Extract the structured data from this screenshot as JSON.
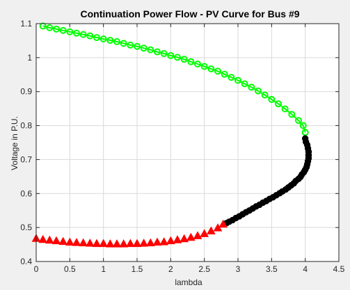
{
  "chart_data": {
    "type": "scatter",
    "title": "Continuation Power Flow - PV Curve for Bus #9",
    "xlabel": "lambda",
    "ylabel": "Voltage in P.U.",
    "xlim": [
      0,
      4.5
    ],
    "ylim": [
      0.4,
      1.1
    ],
    "xticks": [
      0,
      0.5,
      1,
      1.5,
      2,
      2.5,
      3,
      3.5,
      4,
      4.5
    ],
    "xtick_labels": [
      "0",
      "0.5",
      "1",
      "1.5",
      "2",
      "2.5",
      "3",
      "3.5",
      "4",
      "4.5"
    ],
    "yticks": [
      0.4,
      0.5,
      0.6,
      0.7,
      0.8,
      0.9,
      1.0,
      1.1
    ],
    "ytick_labels": [
      "0.4",
      "0.5",
      "0.6",
      "0.7",
      "0.8",
      "0.9",
      "1",
      "1.1"
    ],
    "grid": true,
    "legend": "none",
    "series": [
      {
        "marker": "circle",
        "color": "#00ff00",
        "line": true,
        "points": [
          [
            0.1,
            1.093
          ],
          [
            0.2,
            1.088
          ],
          [
            0.3,
            1.084
          ],
          [
            0.4,
            1.08
          ],
          [
            0.5,
            1.076
          ],
          [
            0.6,
            1.072
          ],
          [
            0.7,
            1.068
          ],
          [
            0.8,
            1.064
          ],
          [
            0.9,
            1.059
          ],
          [
            1.0,
            1.055
          ],
          [
            1.1,
            1.051
          ],
          [
            1.2,
            1.047
          ],
          [
            1.3,
            1.042
          ],
          [
            1.4,
            1.037
          ],
          [
            1.5,
            1.033
          ],
          [
            1.6,
            1.028
          ],
          [
            1.7,
            1.023
          ],
          [
            1.8,
            1.017
          ],
          [
            1.9,
            1.012
          ],
          [
            2.0,
            1.006
          ],
          [
            2.1,
            1.001
          ],
          [
            2.2,
            0.995
          ],
          [
            2.3,
            0.988
          ],
          [
            2.4,
            0.981
          ],
          [
            2.5,
            0.974
          ],
          [
            2.6,
            0.967
          ],
          [
            2.7,
            0.96
          ],
          [
            2.8,
            0.951
          ],
          [
            2.9,
            0.942
          ],
          [
            3.0,
            0.933
          ],
          [
            3.1,
            0.923
          ],
          [
            3.2,
            0.913
          ],
          [
            3.3,
            0.902
          ],
          [
            3.4,
            0.89
          ],
          [
            3.5,
            0.877
          ],
          [
            3.6,
            0.864
          ],
          [
            3.7,
            0.849
          ],
          [
            3.8,
            0.833
          ],
          [
            3.9,
            0.815
          ],
          [
            3.97,
            0.8
          ],
          [
            4.0,
            0.78
          ]
        ]
      },
      {
        "marker": "circle-filled",
        "color": "#000000",
        "line": false,
        "points": [
          [
            4.0,
            0.762
          ],
          [
            4.01,
            0.752
          ],
          [
            4.03,
            0.743
          ],
          [
            4.04,
            0.733
          ],
          [
            4.05,
            0.723
          ],
          [
            4.05,
            0.713
          ],
          [
            4.05,
            0.704
          ],
          [
            4.04,
            0.695
          ],
          [
            4.03,
            0.686
          ],
          [
            4.02,
            0.678
          ],
          [
            4.0,
            0.67
          ],
          [
            3.98,
            0.663
          ],
          [
            3.95,
            0.656
          ],
          [
            3.93,
            0.649
          ],
          [
            3.9,
            0.643
          ],
          [
            3.86,
            0.637
          ],
          [
            3.83,
            0.63
          ],
          [
            3.79,
            0.624
          ],
          [
            3.75,
            0.618
          ],
          [
            3.71,
            0.612
          ],
          [
            3.66,
            0.606
          ],
          [
            3.62,
            0.601
          ],
          [
            3.57,
            0.595
          ],
          [
            3.52,
            0.589
          ],
          [
            3.47,
            0.584
          ],
          [
            3.42,
            0.578
          ],
          [
            3.37,
            0.573
          ],
          [
            3.32,
            0.567
          ],
          [
            3.27,
            0.562
          ],
          [
            3.22,
            0.556
          ],
          [
            3.17,
            0.55
          ],
          [
            3.12,
            0.545
          ],
          [
            3.07,
            0.539
          ],
          [
            3.02,
            0.533
          ],
          [
            2.97,
            0.528
          ],
          [
            2.92,
            0.522
          ],
          [
            2.87,
            0.517
          ],
          [
            2.83,
            0.513
          ]
        ]
      },
      {
        "marker": "triangle-filled",
        "color": "#ff0000",
        "line": false,
        "points": [
          [
            0.0,
            0.467
          ],
          [
            0.1,
            0.464
          ],
          [
            0.2,
            0.462
          ],
          [
            0.3,
            0.46
          ],
          [
            0.4,
            0.458
          ],
          [
            0.5,
            0.456
          ],
          [
            0.6,
            0.455
          ],
          [
            0.7,
            0.454
          ],
          [
            0.8,
            0.453
          ],
          [
            0.9,
            0.452
          ],
          [
            1.0,
            0.452
          ],
          [
            1.1,
            0.451
          ],
          [
            1.2,
            0.451
          ],
          [
            1.3,
            0.451
          ],
          [
            1.4,
            0.452
          ],
          [
            1.5,
            0.452
          ],
          [
            1.6,
            0.453
          ],
          [
            1.7,
            0.454
          ],
          [
            1.8,
            0.456
          ],
          [
            1.9,
            0.457
          ],
          [
            2.0,
            0.46
          ],
          [
            2.1,
            0.463
          ],
          [
            2.2,
            0.466
          ],
          [
            2.3,
            0.47
          ],
          [
            2.4,
            0.475
          ],
          [
            2.5,
            0.481
          ],
          [
            2.6,
            0.489
          ],
          [
            2.7,
            0.498
          ],
          [
            2.78,
            0.509
          ]
        ]
      }
    ]
  }
}
